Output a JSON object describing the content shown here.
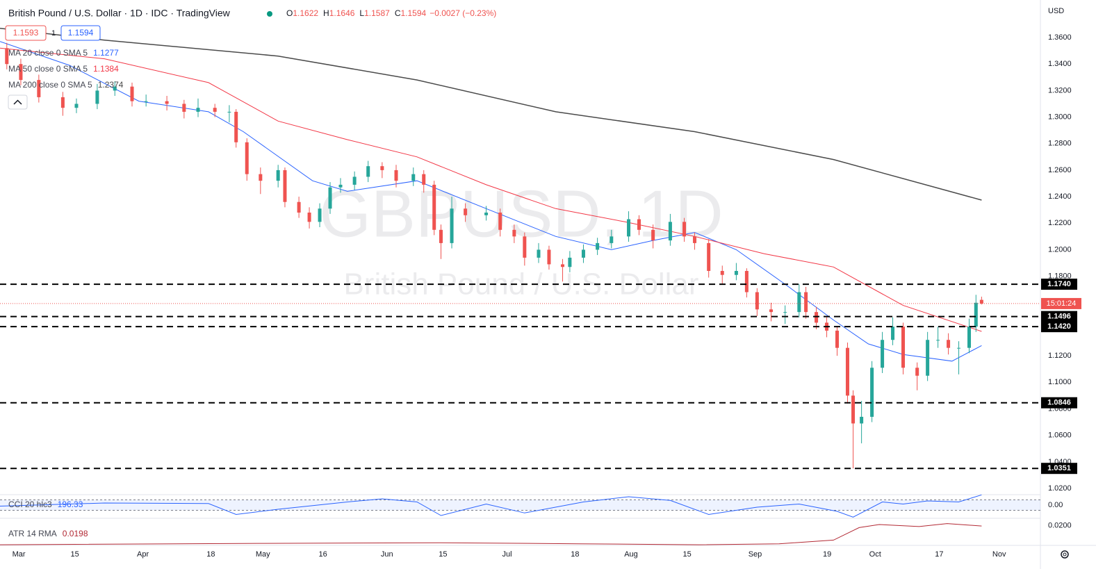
{
  "header": {
    "symbol": "British Pound / U.S. Dollar · 1D · IDC · TradingView",
    "ohlc_labels": [
      "O",
      "H",
      "L",
      "C"
    ],
    "change": "−0.0027 (−0.23%)",
    "bid": "1.1593",
    "spread": "1",
    "currency": "USD"
  },
  "chart_data": {
    "type": "candlestick",
    "watermark": "GBPUSD, 1D",
    "watermark_subtitle": "British Pound / U.S. Dollar",
    "xlim": [
      -4.7,
      255.3
    ],
    "xticks": [
      {
        "value": 0,
        "label": "Mar"
      },
      {
        "value": 14,
        "label": "15"
      },
      {
        "value": 31,
        "label": "Apr"
      },
      {
        "value": 48,
        "label": "18"
      },
      {
        "value": 61,
        "label": "May"
      },
      {
        "value": 76,
        "label": "16"
      },
      {
        "value": 92,
        "label": "Jun"
      },
      {
        "value": 106,
        "label": "15"
      },
      {
        "value": 122,
        "label": "Jul"
      },
      {
        "value": 139,
        "label": "18"
      },
      {
        "value": 153,
        "label": "Aug"
      },
      {
        "value": 167,
        "label": "15"
      },
      {
        "value": 184,
        "label": "Sep"
      },
      {
        "value": 202,
        "label": "19"
      },
      {
        "value": 214,
        "label": "Oct"
      },
      {
        "value": 230,
        "label": "17"
      },
      {
        "value": 245,
        "label": "Nov"
      }
    ],
    "ylim": [
      1.0153,
      1.3883
    ],
    "yticks": [
      {
        "value": 1.02,
        "label": "1.0200"
      },
      {
        "value": 1.04,
        "label": "1.0400"
      },
      {
        "value": 1.06,
        "label": "1.0600"
      },
      {
        "value": 1.08,
        "label": "1.0800"
      },
      {
        "value": 1.1,
        "label": "1.1000"
      },
      {
        "value": 1.12,
        "label": "1.1200"
      },
      {
        "value": 1.14,
        "label": "1.1400"
      },
      {
        "value": 1.16,
        "label": "1.1600"
      },
      {
        "value": 1.18,
        "label": "1.1800"
      },
      {
        "value": 1.2,
        "label": "1.2000"
      },
      {
        "value": 1.22,
        "label": "1.2200"
      },
      {
        "value": 1.24,
        "label": "1.2400"
      },
      {
        "value": 1.26,
        "label": "1.2600"
      },
      {
        "value": 1.28,
        "label": "1.2800"
      },
      {
        "value": 1.3,
        "label": "1.3000"
      },
      {
        "value": 1.32,
        "label": "1.3200"
      },
      {
        "value": 1.34,
        "label": "1.3400"
      },
      {
        "value": 1.36,
        "label": "1.3600"
      }
    ],
    "up_color": "#26a69a",
    "down_color": "#ef5350",
    "candles": [
      [
        -3,
        1.352,
        1.356,
        1.336,
        1.34
      ],
      [
        0.5,
        1.34,
        1.344,
        1.324,
        1.328
      ],
      [
        5,
        1.328,
        1.332,
        1.311,
        1.315
      ],
      [
        11,
        1.315,
        1.319,
        1.301,
        1.307
      ],
      [
        14.4,
        1.307,
        1.314,
        1.303,
        1.31
      ],
      [
        19.6,
        1.31,
        1.325,
        1.306,
        1.32
      ],
      [
        24,
        1.32,
        1.327,
        1.316,
        1.323
      ],
      [
        28.3,
        1.323,
        1.326,
        1.308,
        1.312
      ],
      [
        31.8,
        1.312,
        1.317,
        1.308,
        1.312
      ],
      [
        37,
        1.312,
        1.316,
        1.305,
        1.31
      ],
      [
        41.3,
        1.31,
        1.313,
        1.299,
        1.304
      ],
      [
        44.8,
        1.304,
        1.314,
        1.3,
        1.307
      ],
      [
        49,
        1.307,
        1.31,
        1.3,
        1.304
      ],
      [
        52.6,
        1.304,
        1.309,
        1.296,
        1.304
      ],
      [
        54.3,
        1.304,
        1.306,
        1.277,
        1.281
      ],
      [
        57,
        1.281,
        1.284,
        1.252,
        1.257
      ],
      [
        60.4,
        1.257,
        1.262,
        1.242,
        1.252
      ],
      [
        64.8,
        1.252,
        1.264,
        1.247,
        1.26
      ],
      [
        66.5,
        1.26,
        1.262,
        1.232,
        1.236
      ],
      [
        70,
        1.236,
        1.24,
        1.224,
        1.228
      ],
      [
        72.6,
        1.228,
        1.232,
        1.216,
        1.221
      ],
      [
        75.2,
        1.221,
        1.235,
        1.217,
        1.231
      ],
      [
        77.8,
        1.231,
        1.251,
        1.227,
        1.247
      ],
      [
        80.4,
        1.247,
        1.254,
        1.243,
        1.249
      ],
      [
        83.9,
        1.249,
        1.259,
        1.245,
        1.255
      ],
      [
        87.3,
        1.255,
        1.267,
        1.251,
        1.263
      ],
      [
        90.8,
        1.263,
        1.266,
        1.254,
        1.26
      ],
      [
        94.3,
        1.26,
        1.264,
        1.247,
        1.252
      ],
      [
        98.6,
        1.252,
        1.262,
        1.248,
        1.257
      ],
      [
        101.2,
        1.257,
        1.26,
        1.243,
        1.249
      ],
      [
        103.8,
        1.249,
        1.252,
        1.211,
        1.215
      ],
      [
        105.5,
        1.215,
        1.219,
        1.193,
        1.205
      ],
      [
        108.2,
        1.205,
        1.24,
        1.201,
        1.231
      ],
      [
        111.6,
        1.231,
        1.235,
        1.221,
        1.226
      ],
      [
        116.8,
        1.226,
        1.233,
        1.222,
        1.228
      ],
      [
        120.3,
        1.228,
        1.231,
        1.21,
        1.215
      ],
      [
        123.8,
        1.215,
        1.219,
        1.205,
        1.21
      ],
      [
        126.4,
        1.21,
        1.213,
        1.188,
        1.194
      ],
      [
        129.9,
        1.194,
        1.205,
        1.19,
        1.2
      ],
      [
        132.5,
        1.2,
        1.203,
        1.185,
        1.189
      ],
      [
        135.9,
        1.189,
        1.193,
        1.176,
        1.187
      ],
      [
        137.7,
        1.187,
        1.199,
        1.183,
        1.194
      ],
      [
        141.1,
        1.194,
        1.204,
        1.19,
        1.2
      ],
      [
        144.6,
        1.2,
        1.209,
        1.196,
        1.205
      ],
      [
        148.1,
        1.205,
        1.215,
        1.201,
        1.21
      ],
      [
        152.4,
        1.21,
        1.229,
        1.206,
        1.223
      ],
      [
        155,
        1.223,
        1.226,
        1.211,
        1.215
      ],
      [
        158.5,
        1.215,
        1.219,
        1.201,
        1.207
      ],
      [
        162.8,
        1.207,
        1.227,
        1.203,
        1.221
      ],
      [
        166.3,
        1.221,
        1.224,
        1.206,
        1.21
      ],
      [
        168.9,
        1.21,
        1.213,
        1.2,
        1.205
      ],
      [
        172.4,
        1.205,
        1.208,
        1.179,
        1.184
      ],
      [
        175.8,
        1.184,
        1.188,
        1.174,
        1.181
      ],
      [
        179.3,
        1.181,
        1.19,
        1.177,
        1.184
      ],
      [
        181.9,
        1.184,
        1.186,
        1.164,
        1.168
      ],
      [
        184.5,
        1.168,
        1.171,
        1.15,
        1.155
      ],
      [
        188,
        1.155,
        1.16,
        1.146,
        1.153
      ],
      [
        191.5,
        1.153,
        1.158,
        1.144,
        1.153
      ],
      [
        195,
        1.153,
        1.174,
        1.149,
        1.168
      ],
      [
        196.7,
        1.168,
        1.172,
        1.148,
        1.153
      ],
      [
        199.3,
        1.153,
        1.157,
        1.14,
        1.145
      ],
      [
        201.9,
        1.145,
        1.149,
        1.134,
        1.139
      ],
      [
        204.5,
        1.139,
        1.142,
        1.12,
        1.126
      ],
      [
        207.1,
        1.126,
        1.13,
        1.084,
        1.09
      ],
      [
        208.5,
        1.09,
        1.094,
        1.0351,
        1.069
      ],
      [
        210.6,
        1.069,
        1.086,
        1.054,
        1.074
      ],
      [
        213.2,
        1.074,
        1.116,
        1.07,
        1.111
      ],
      [
        215.8,
        1.111,
        1.138,
        1.107,
        1.132
      ],
      [
        218.4,
        1.132,
        1.149,
        1.128,
        1.142
      ],
      [
        221,
        1.142,
        1.145,
        1.106,
        1.111
      ],
      [
        224.5,
        1.111,
        1.115,
        1.094,
        1.105
      ],
      [
        227.1,
        1.105,
        1.138,
        1.101,
        1.132
      ],
      [
        229.7,
        1.132,
        1.142,
        1.126,
        1.132
      ],
      [
        232.3,
        1.132,
        1.137,
        1.121,
        1.126
      ],
      [
        234.9,
        1.126,
        1.131,
        1.106,
        1.126
      ],
      [
        237.5,
        1.126,
        1.148,
        1.122,
        1.142
      ],
      [
        239.2,
        1.142,
        1.166,
        1.138,
        1.16
      ],
      [
        240.6,
        1.1622,
        1.1646,
        1.1587,
        1.1594
      ]
    ],
    "series": [
      {
        "name": "MA 20 close 0 SMA 5",
        "color": "#2962ff",
        "x": [
          -4.7,
          12.7,
          30,
          47.4,
          56.1,
          73.4,
          82.1,
          99.5,
          116.8,
          134.2,
          148.1,
          158.5,
          168.9,
          179.3,
          191.5,
          203.6,
          212.3,
          221,
          233.2,
          240.6
        ],
        "values": [
          1.357,
          1.339,
          1.312,
          1.304,
          1.289,
          1.252,
          1.244,
          1.252,
          1.231,
          1.21,
          1.2,
          1.207,
          1.213,
          1.2,
          1.174,
          1.147,
          1.129,
          1.121,
          1.116,
          1.1277
        ]
      },
      {
        "name": "MA 50 close 0 SMA 5",
        "color": "#f23645",
        "x": [
          -4.7,
          21.4,
          47.4,
          64.8,
          82.1,
          99.5,
          116.8,
          134.2,
          151.6,
          168.9,
          186.3,
          203.6,
          221,
          240.6
        ],
        "values": [
          1.352,
          1.344,
          1.326,
          1.297,
          1.283,
          1.27,
          1.249,
          1.231,
          1.221,
          1.21,
          1.197,
          1.187,
          1.158,
          1.1384
        ]
      },
      {
        "name": "MA 200 close 0 SMA 5",
        "color": "#4a4a4a",
        "x": [
          -4.7,
          21.4,
          64.8,
          99.5,
          134.2,
          168.9,
          203.6,
          240.6
        ],
        "values": [
          1.367,
          1.358,
          1.346,
          1.328,
          1.304,
          1.289,
          1.268,
          1.2374
        ]
      }
    ],
    "levels": [
      {
        "value": 1.174,
        "label": "1.1740"
      },
      {
        "value": 1.1496,
        "label": "1.1496"
      },
      {
        "value": 1.142,
        "label": "1.1420"
      },
      {
        "value": 1.0846,
        "label": "1.0846"
      },
      {
        "value": 1.0351,
        "label": "1.0351"
      }
    ],
    "level_color": "#000000",
    "price_line_color": "#ef5350",
    "countdown": "15:01:24",
    "indicators": [
      {
        "name": "CCI 20 hlc3",
        "color": "#2962ff",
        "ylim": [
          -240,
          200
        ],
        "yticks": [
          {
            "value": 0,
            "label": "0.00"
          }
        ],
        "bands": [
          100,
          -100
        ],
        "x": [
          -4.7,
          21.4,
          47.4,
          54.3,
          64.8,
          82.1,
          90.8,
          99.5,
          105.5,
          116.8,
          126.4,
          141.1,
          152.4,
          162.8,
          172.4,
          184.5,
          195,
          204.5,
          208.5,
          215.8,
          221,
          227.1,
          234.9,
          240.6
        ],
        "values": [
          -20,
          40,
          30,
          -180,
          -80,
          60,
          120,
          60,
          -200,
          20,
          -150,
          60,
          160,
          90,
          -180,
          -40,
          20,
          -120,
          -230,
          60,
          20,
          80,
          60,
          196.33
        ]
      },
      {
        "name": "ATR 14 RMA",
        "color": "#b22833",
        "ylim": [
          0.0102,
          0.0236
        ],
        "yticks": [
          {
            "value": 0.02,
            "label": "0.0200"
          }
        ],
        "x": [
          -4.7,
          60,
          105,
          140,
          170,
          190,
          203.6,
          210,
          215,
          225,
          232,
          240.6
        ],
        "values": [
          0.0105,
          0.0112,
          0.0115,
          0.011,
          0.0105,
          0.011,
          0.0128,
          0.019,
          0.0205,
          0.0195,
          0.021,
          0.0198
        ]
      }
    ]
  }
}
